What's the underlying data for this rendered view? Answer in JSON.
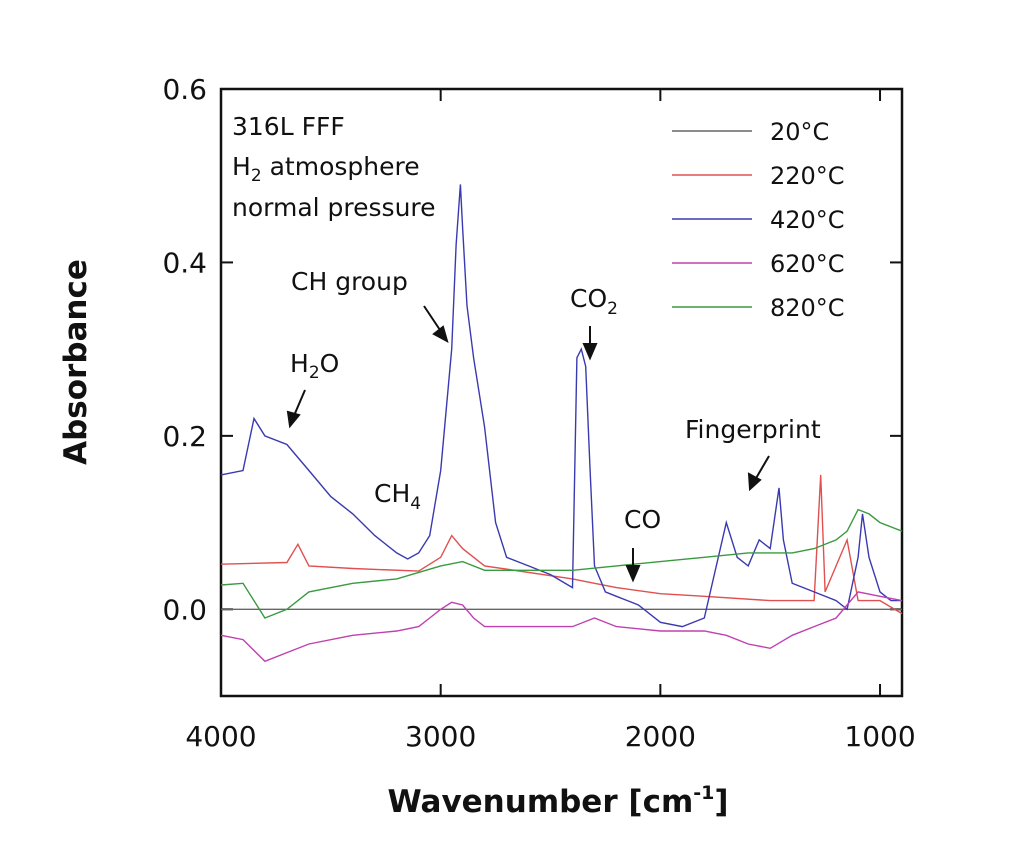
{
  "chart_data": {
    "type": "line",
    "xlabel": "Wavenumber [cm",
    "xlabel_sup": "-1",
    "xlabel_end": "]",
    "ylabel": "Absorbance",
    "xlim": [
      4000,
      900
    ],
    "ylim": [
      -0.1,
      0.6
    ],
    "x_ticks": [
      4000,
      3000,
      2000,
      1000
    ],
    "x_tick_labels": [
      "4000",
      "3000",
      "2000",
      "1000"
    ],
    "y_ticks": [
      0.0,
      0.2,
      0.4,
      0.6
    ],
    "y_tick_labels": [
      "0.0",
      "0.2",
      "0.4",
      "0.6"
    ],
    "grid": false,
    "legend_position": "top-right",
    "notes": {
      "line1": "316L FFF",
      "line2_a": "H",
      "line2_sub": "2",
      "line2_b": " atmosphere",
      "line3": "normal pressure"
    },
    "annotations": {
      "h2o_a": "H",
      "h2o_sub": "2",
      "h2o_b": "O",
      "ch_group": "CH group",
      "co2_a": "CO",
      "co2_sub": "2",
      "ch4_a": "CH",
      "ch4_sub": "4",
      "co": "CO",
      "fingerprint": "Fingerprint"
    },
    "series": [
      {
        "name": "20°C",
        "color": "#666666",
        "x": [
          4000,
          3000,
          2000,
          1000,
          900
        ],
        "y": [
          0.0,
          0.0,
          0.0,
          0.0,
          0.0
        ]
      },
      {
        "name": "220°C",
        "color": "#e05050",
        "x": [
          4000,
          3700,
          3650,
          3600,
          3400,
          3100,
          3000,
          2950,
          2900,
          2800,
          2400,
          2300,
          2200,
          2000,
          1800,
          1500,
          1300,
          1270,
          1250,
          1150,
          1100,
          1000,
          900
        ],
        "y": [
          0.052,
          0.054,
          0.075,
          0.05,
          0.047,
          0.044,
          0.06,
          0.085,
          0.07,
          0.05,
          0.035,
          0.03,
          0.025,
          0.018,
          0.015,
          0.01,
          0.01,
          0.155,
          0.02,
          0.08,
          0.01,
          0.01,
          -0.005
        ]
      },
      {
        "name": "420°C",
        "color": "#3a3ab0",
        "x": [
          4000,
          3900,
          3850,
          3800,
          3700,
          3600,
          3500,
          3400,
          3300,
          3200,
          3150,
          3100,
          3050,
          3000,
          2950,
          2930,
          2910,
          2900,
          2880,
          2850,
          2800,
          2750,
          2700,
          2600,
          2500,
          2400,
          2380,
          2360,
          2340,
          2320,
          2300,
          2250,
          2200,
          2150,
          2100,
          2000,
          1900,
          1800,
          1700,
          1650,
          1600,
          1550,
          1500,
          1460,
          1440,
          1400,
          1300,
          1200,
          1150,
          1100,
          1080,
          1050,
          1000,
          950,
          900
        ],
        "y": [
          0.155,
          0.16,
          0.22,
          0.2,
          0.19,
          0.16,
          0.13,
          0.11,
          0.085,
          0.065,
          0.058,
          0.065,
          0.085,
          0.16,
          0.3,
          0.42,
          0.49,
          0.44,
          0.35,
          0.29,
          0.21,
          0.1,
          0.06,
          0.05,
          0.04,
          0.025,
          0.29,
          0.3,
          0.28,
          0.16,
          0.05,
          0.02,
          0.015,
          0.01,
          0.005,
          -0.015,
          -0.02,
          -0.01,
          0.1,
          0.06,
          0.05,
          0.08,
          0.07,
          0.14,
          0.08,
          0.03,
          0.02,
          0.01,
          0.0,
          0.06,
          0.11,
          0.06,
          0.02,
          0.01,
          0.01
        ]
      },
      {
        "name": "620°C",
        "color": "#c040b0",
        "x": [
          4000,
          3900,
          3800,
          3700,
          3600,
          3400,
          3200,
          3100,
          3050,
          3000,
          2950,
          2900,
          2850,
          2800,
          2600,
          2400,
          2300,
          2200,
          2000,
          1800,
          1700,
          1600,
          1500,
          1400,
          1300,
          1200,
          1100,
          1000,
          900
        ],
        "y": [
          -0.03,
          -0.035,
          -0.06,
          -0.05,
          -0.04,
          -0.03,
          -0.025,
          -0.02,
          -0.01,
          0.0,
          0.008,
          0.005,
          -0.01,
          -0.02,
          -0.02,
          -0.02,
          -0.01,
          -0.02,
          -0.025,
          -0.025,
          -0.03,
          -0.04,
          -0.045,
          -0.03,
          -0.02,
          -0.01,
          0.02,
          0.015,
          0.01
        ]
      },
      {
        "name": "820°C",
        "color": "#3a9a40",
        "x": [
          4000,
          3900,
          3800,
          3700,
          3600,
          3400,
          3200,
          3000,
          2900,
          2800,
          2600,
          2400,
          2200,
          2000,
          1800,
          1600,
          1400,
          1300,
          1200,
          1150,
          1100,
          1050,
          1000,
          950,
          900
        ],
        "y": [
          0.028,
          0.03,
          -0.01,
          0.0,
          0.02,
          0.03,
          0.035,
          0.05,
          0.055,
          0.045,
          0.045,
          0.045,
          0.05,
          0.055,
          0.06,
          0.065,
          0.065,
          0.07,
          0.08,
          0.09,
          0.115,
          0.11,
          0.1,
          0.095,
          0.09
        ]
      }
    ]
  }
}
